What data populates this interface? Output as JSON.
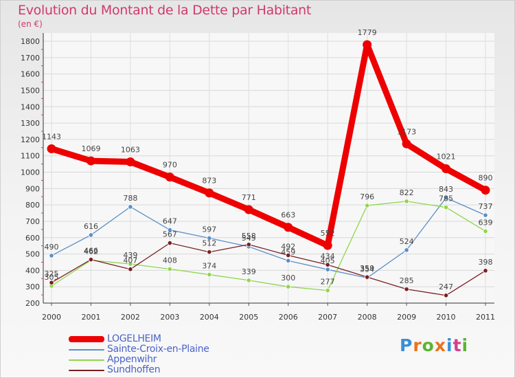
{
  "title": "Evolution du Montant de la Dette par Habitant",
  "subtitle": "(en €)",
  "logo": {
    "text": "Proxiti",
    "colors": [
      "#3a8fd6",
      "#e8731c",
      "#5bb431",
      "#e8731c",
      "#3a8fd6",
      "#d43f8d",
      "#5bb431"
    ]
  },
  "chart_data": {
    "type": "line",
    "x": [
      "2000",
      "2001",
      "2002",
      "2003",
      "2004",
      "2005",
      "2006",
      "2007",
      "2008",
      "2009",
      "2010",
      "2011"
    ],
    "ylim": [
      200,
      1800
    ],
    "yticks": [
      200,
      300,
      400,
      500,
      600,
      700,
      800,
      900,
      1000,
      1100,
      1200,
      1300,
      1400,
      1500,
      1600,
      1700,
      1800
    ],
    "grid": true,
    "legend_position": "bottom-left",
    "series": [
      {
        "name": "LOGELHEIM",
        "color": "#ee0000",
        "values": [
          1143,
          1069,
          1063,
          970,
          873,
          771,
          663,
          552,
          1779,
          1173,
          1021,
          890
        ]
      },
      {
        "name": "Sainte-Croix-en-Plaine",
        "color": "#5b8fc7",
        "values": [
          490,
          616,
          788,
          647,
          597,
          545,
          459,
          405,
          354,
          524,
          843,
          737
        ]
      },
      {
        "name": "Appenwihr",
        "color": "#8fd64a",
        "values": [
          305,
          462,
          439,
          408,
          374,
          339,
          300,
          277,
          796,
          822,
          785,
          639
        ]
      },
      {
        "name": "Sundhoffen",
        "color": "#7a1f24",
        "values": [
          325,
          466,
          407,
          567,
          512,
          558,
          492,
          434,
          359,
          285,
          247,
          398
        ]
      }
    ]
  }
}
